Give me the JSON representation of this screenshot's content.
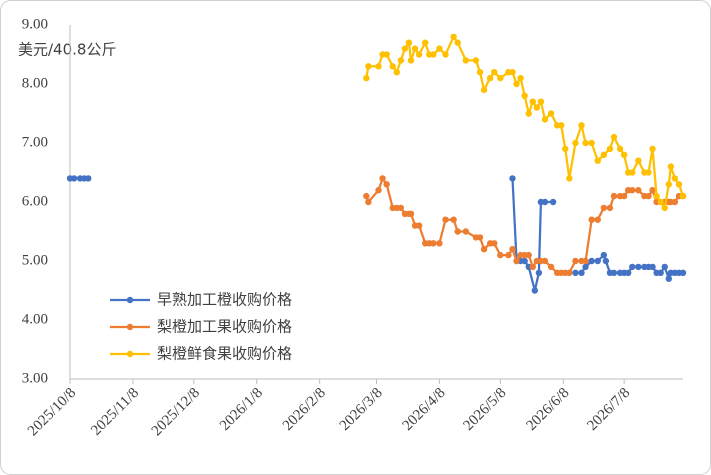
{
  "chart_data": {
    "type": "line",
    "y_label": "美元/40.8公斤",
    "xlim": [
      "2025/10/8",
      "2026/8/6"
    ],
    "xticks": [
      "2025/10/8",
      "2025/11/8",
      "2025/12/8",
      "2026/1/8",
      "2026/2/8",
      "2026/3/8",
      "2026/4/8",
      "2026/5/8",
      "2026/6/8",
      "2026/7/8"
    ],
    "ylim": [
      3,
      9
    ],
    "yticks": [
      {
        "value": 3,
        "label": "3.00"
      },
      {
        "value": 4,
        "label": "4.00"
      },
      {
        "value": 5,
        "label": "5.00"
      },
      {
        "value": 6,
        "label": "6.00"
      },
      {
        "value": 7,
        "label": "7.00"
      },
      {
        "value": 8,
        "label": "8.00"
      },
      {
        "value": 9,
        "label": "9.00"
      }
    ],
    "grid": false,
    "legend": "lower left",
    "series": [
      {
        "name": "早熟加工橙收购价格",
        "color": "#4472c4",
        "x": [
          "2025/10/8",
          "2025/10/10",
          "2025/10/13",
          "2025/10/15",
          "2025/10/17",
          "2026/1/8",
          "2026/5/14",
          "2026/5/16",
          "2026/5/18",
          "2026/5/20",
          "2026/5/22",
          "2026/5/25",
          "2026/5/27",
          "2026/5/28",
          "2026/5/30",
          "2026/6/3",
          "2026/6/8",
          "2026/6/14",
          "2026/6/17",
          "2026/6/19",
          "2026/6/22",
          "2026/6/25",
          "2026/6/28",
          "2026/6/29",
          "2026/7/1",
          "2026/7/3",
          "2026/7/6",
          "2026/7/8",
          "2026/7/10",
          "2026/7/12",
          "2026/7/15",
          "2026/7/18",
          "2026/7/20",
          "2026/7/22",
          "2026/7/24",
          "2026/7/26",
          "2026/7/28",
          "2026/7/30",
          "2026/7/31",
          "2026/8/2",
          "2026/8/4",
          "2026/8/6"
        ],
        "values": [
          6.4,
          6.4,
          6.4,
          6.4,
          6.4,
          null,
          6.4,
          5.0,
          5.0,
          5.0,
          4.9,
          4.5,
          4.8,
          6.0,
          6.0,
          6.0,
          null,
          4.8,
          4.8,
          4.9,
          5.0,
          5.0,
          5.1,
          5.0,
          4.8,
          4.8,
          4.8,
          4.8,
          4.8,
          4.9,
          4.9,
          4.9,
          4.9,
          4.9,
          4.8,
          4.8,
          4.9,
          4.7,
          4.8,
          4.8,
          4.8,
          4.8
        ]
      },
      {
        "name": "梨橙加工果收购价格",
        "color": "#ed7d31",
        "x": [
          "2026/3/3",
          "2026/3/4",
          "2026/3/9",
          "2026/3/11",
          "2026/3/13",
          "2026/3/16",
          "2026/3/18",
          "2026/3/20",
          "2026/3/22",
          "2026/3/24",
          "2026/3/25",
          "2026/3/27",
          "2026/3/29",
          "2026/4/1",
          "2026/4/3",
          "2026/4/5",
          "2026/4/8",
          "2026/4/11",
          "2026/4/15",
          "2026/4/17",
          "2026/4/21",
          "2026/4/26",
          "2026/4/28",
          "2026/4/30",
          "2026/5/3",
          "2026/5/5",
          "2026/5/8",
          "2026/5/12",
          "2026/5/14",
          "2026/5/16",
          "2026/5/18",
          "2026/5/20",
          "2026/5/22",
          "2026/5/24",
          "2026/5/26",
          "2026/5/28",
          "2026/5/30",
          "2026/6/2",
          "2026/6/5",
          "2026/6/7",
          "2026/6/9",
          "2026/6/11",
          "2026/6/14",
          "2026/6/17",
          "2026/6/19",
          "2026/6/22",
          "2026/6/25",
          "2026/6/28",
          "2026/7/1",
          "2026/7/3",
          "2026/7/6",
          "2026/7/8",
          "2026/7/10",
          "2026/7/12",
          "2026/7/15",
          "2026/7/18",
          "2026/7/20",
          "2026/7/22",
          "2026/7/24",
          "2026/7/26",
          "2026/7/28",
          "2026/7/30",
          "2026/7/31",
          "2026/8/2",
          "2026/8/4",
          "2026/8/6"
        ],
        "values": [
          6.1,
          6.0,
          6.2,
          6.4,
          6.3,
          5.9,
          5.9,
          5.9,
          5.8,
          5.8,
          5.8,
          5.6,
          5.6,
          5.3,
          5.3,
          5.3,
          5.3,
          5.7,
          5.7,
          5.5,
          5.5,
          5.4,
          5.4,
          5.2,
          5.3,
          5.3,
          5.1,
          5.1,
          5.2,
          5.0,
          5.1,
          5.1,
          5.1,
          4.9,
          5.0,
          5.0,
          5.0,
          4.9,
          4.8,
          4.8,
          4.8,
          4.8,
          5.0,
          5.0,
          5.0,
          5.7,
          5.7,
          5.9,
          5.9,
          6.1,
          6.1,
          6.1,
          6.2,
          6.2,
          6.2,
          6.1,
          6.1,
          6.2,
          6.0,
          6.0,
          6.0,
          6.0,
          6.0,
          6.0,
          6.1,
          6.1
        ]
      },
      {
        "name": "梨橙鲜食果收购价格",
        "color": "#ffc000",
        "x": [
          "2026/3/3",
          "2026/3/4",
          "2026/3/9",
          "2026/3/11",
          "2026/3/13",
          "2026/3/16",
          "2026/3/18",
          "2026/3/20",
          "2026/3/22",
          "2026/3/24",
          "2026/3/25",
          "2026/3/27",
          "2026/3/29",
          "2026/4/1",
          "2026/4/3",
          "2026/4/5",
          "2026/4/8",
          "2026/4/11",
          "2026/4/15",
          "2026/4/17",
          "2026/4/21",
          "2026/4/26",
          "2026/4/28",
          "2026/4/30",
          "2026/5/3",
          "2026/5/5",
          "2026/5/8",
          "2026/5/12",
          "2026/5/14",
          "2026/5/16",
          "2026/5/18",
          "2026/5/20",
          "2026/5/22",
          "2026/5/24",
          "2026/5/26",
          "2026/5/28",
          "2026/5/30",
          "2026/6/2",
          "2026/6/5",
          "2026/6/7",
          "2026/6/9",
          "2026/6/11",
          "2026/6/14",
          "2026/6/17",
          "2026/6/19",
          "2026/6/22",
          "2026/6/25",
          "2026/6/28",
          "2026/7/1",
          "2026/7/3",
          "2026/7/6",
          "2026/7/8",
          "2026/7/10",
          "2026/7/12",
          "2026/7/15",
          "2026/7/18",
          "2026/7/20",
          "2026/7/22",
          "2026/7/24",
          "2026/7/26",
          "2026/7/28",
          "2026/7/30",
          "2026/7/31",
          "2026/8/2",
          "2026/8/4",
          "2026/8/6"
        ],
        "values": [
          8.1,
          8.3,
          8.3,
          8.5,
          8.5,
          8.3,
          8.2,
          8.4,
          8.6,
          8.7,
          8.4,
          8.6,
          8.5,
          8.7,
          8.5,
          8.5,
          8.6,
          8.5,
          8.8,
          8.7,
          8.4,
          8.4,
          8.2,
          7.9,
          8.1,
          8.2,
          8.1,
          8.2,
          8.2,
          8.0,
          8.1,
          7.8,
          7.5,
          7.7,
          7.6,
          7.7,
          7.4,
          7.5,
          7.3,
          7.3,
          6.9,
          6.4,
          7.0,
          7.3,
          7.0,
          7.0,
          6.7,
          6.8,
          6.9,
          7.1,
          6.9,
          6.8,
          6.5,
          6.5,
          6.7,
          6.5,
          6.5,
          6.9,
          6.1,
          6.0,
          5.9,
          6.3,
          6.6,
          6.4,
          6.3,
          6.1
        ]
      }
    ]
  }
}
